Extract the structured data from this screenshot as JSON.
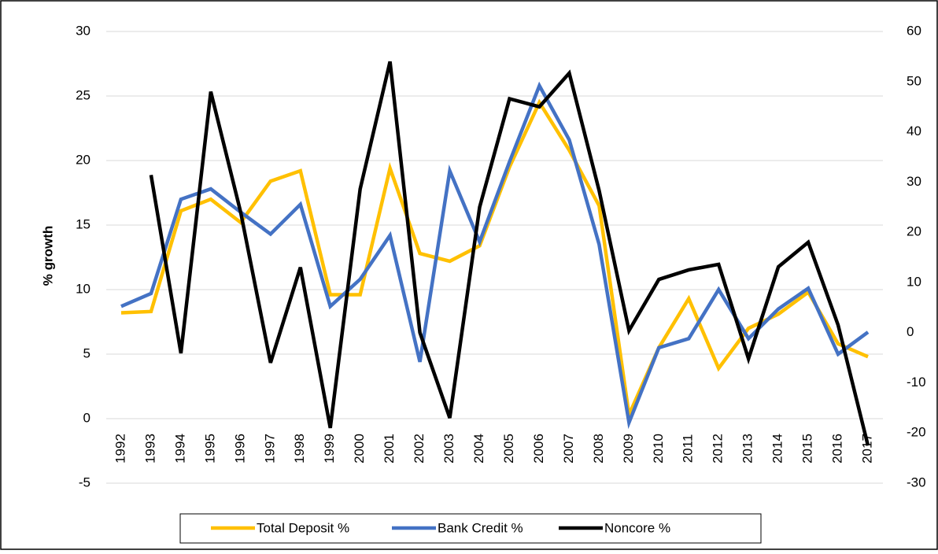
{
  "chart_data": {
    "type": "line",
    "y_label": "% growth",
    "categories": [
      "1992",
      "1993",
      "1994",
      "1995",
      "1996",
      "1997",
      "1998",
      "1999",
      "2000",
      "2001",
      "2002",
      "2003",
      "2004",
      "2005",
      "2006",
      "2007",
      "2008",
      "2009",
      "2010",
      "2011",
      "2012",
      "2013",
      "2014",
      "2015",
      "2016",
      "2017"
    ],
    "series": [
      {
        "name": "Total Deposit %",
        "color": "#ffc000",
        "axis": "y",
        "values": [
          8.2,
          8.3,
          16.1,
          17.0,
          15.2,
          18.4,
          19.2,
          9.6,
          9.6,
          19.4,
          12.8,
          12.2,
          13.4,
          19.5,
          24.5,
          20.8,
          16.5,
          0.3,
          5.5,
          9.3,
          3.9,
          7.0,
          8.1,
          9.8,
          5.8,
          4.8
        ]
      },
      {
        "name": "Bank Credit %",
        "color": "#4472c4",
        "axis": "y",
        "values": [
          8.7,
          9.7,
          17.0,
          17.8,
          16.0,
          14.3,
          16.6,
          8.7,
          10.8,
          14.2,
          4.4,
          19.2,
          13.7,
          19.9,
          25.8,
          21.6,
          13.5,
          -0.3,
          5.5,
          6.2,
          10.0,
          6.2,
          8.5,
          10.1,
          5.0,
          6.7
        ]
      },
      {
        "name": "Noncore %",
        "color": "#000000",
        "axis": "y2",
        "values": [
          null,
          31.4,
          -4.1,
          48,
          24,
          -6,
          13,
          -19,
          28.6,
          54,
          0,
          -17,
          25,
          46.6,
          45,
          51.7,
          28.3,
          0.4,
          10.6,
          12.5,
          13.6,
          -5.2,
          13.1,
          18,
          1.5,
          -22.5
        ]
      }
    ],
    "ylim": [
      -5,
      30
    ],
    "yticks": [
      -5,
      0,
      5,
      10,
      15,
      20,
      25,
      30
    ],
    "y2lim": [
      -30,
      60
    ],
    "y2ticks": [
      -30,
      -20,
      -10,
      0,
      10,
      20,
      30,
      40,
      50,
      60
    ],
    "grid": true,
    "legend": "bottom"
  }
}
